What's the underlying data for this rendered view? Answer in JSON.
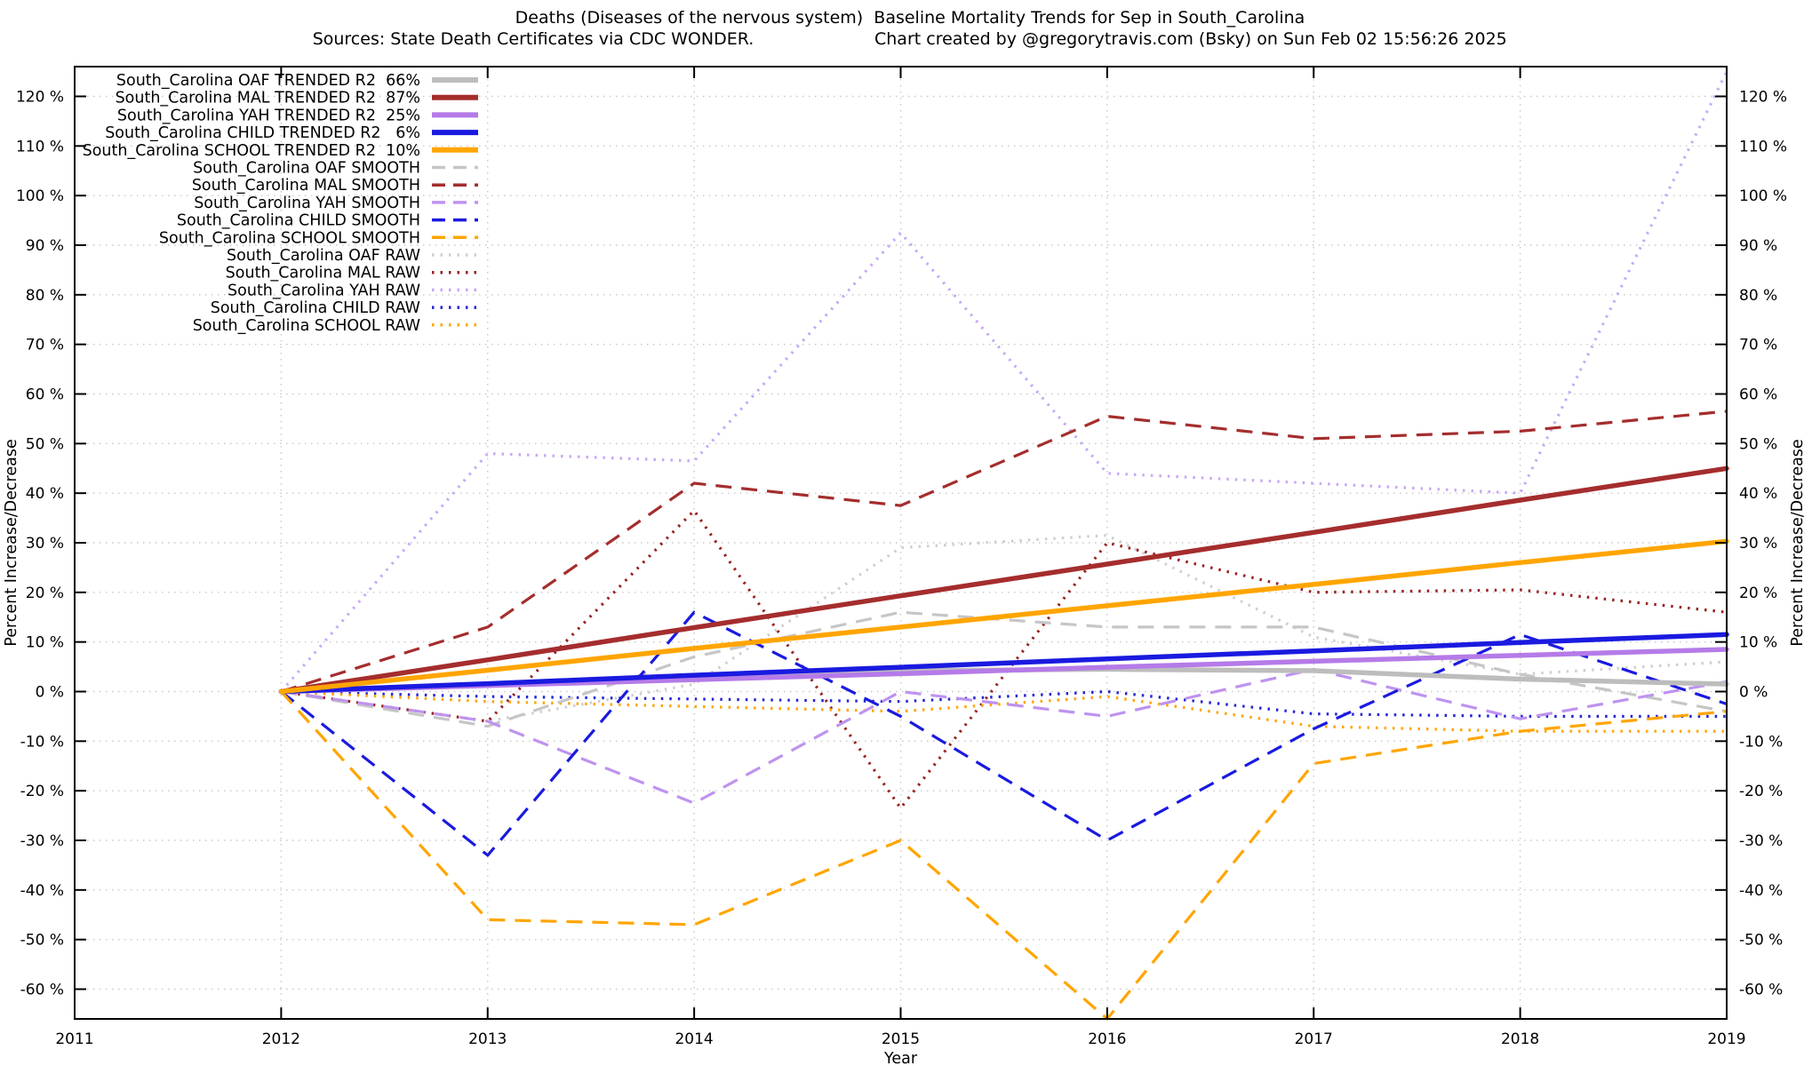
{
  "title": {
    "line1": "Deaths (Diseases of the nervous system)  Baseline Mortality Trends for Sep in South_Carolina",
    "sources": "Sources: State Death Certificates via CDC WONDER.",
    "credit": "Chart created by @gregorytravis.com (Bsky) on Sun Feb 02 15:56:26 2025"
  },
  "chart_data": {
    "type": "line",
    "x": [
      2012,
      2013,
      2014,
      2015,
      2016,
      2017,
      2018,
      2019
    ],
    "xlabel": "Year",
    "ylabel_left": "Percent Increase/Decrease",
    "ylabel_right": "Percent Increase/Decrease",
    "xlim": [
      2011,
      2019
    ],
    "ylim": [
      -66,
      126
    ],
    "xticks": [
      2011,
      2012,
      2013,
      2014,
      2015,
      2016,
      2017,
      2018,
      2019
    ],
    "yticks": [
      -60,
      -50,
      -40,
      -30,
      -20,
      -10,
      0,
      10,
      20,
      30,
      40,
      50,
      60,
      70,
      80,
      90,
      100,
      110,
      120
    ],
    "ytick_suffix": " %",
    "grid": true,
    "grid_color": "#c8c8c8",
    "legend_position": "top-left",
    "series": [
      {
        "name": "OAF TRENDED",
        "legend_label": "South_Carolina OAF TRENDED R2  66%",
        "group": "TRENDED",
        "style": "solid",
        "color": "#bdbdbd",
        "values": [
          0,
          1.5,
          3.2,
          4.2,
          4.5,
          4.2,
          2.5,
          1.5
        ]
      },
      {
        "name": "MAL TRENDED",
        "legend_label": "South_Carolina MAL TRENDED R2  87%",
        "group": "TRENDED",
        "style": "solid",
        "color": "#a52d2d",
        "values": [
          0,
          6.4,
          12.9,
          19.3,
          25.7,
          32.1,
          38.6,
          45
        ]
      },
      {
        "name": "YAH TRENDED",
        "legend_label": "South_Carolina YAH TRENDED R2  25%",
        "group": "TRENDED",
        "style": "solid",
        "color": "#b57be8",
        "values": [
          0,
          1.2,
          2.4,
          3.6,
          4.9,
          6.1,
          7.3,
          8.5
        ]
      },
      {
        "name": "CHILD TRENDED",
        "legend_label": "South_Carolina CHILD TRENDED R2   6%",
        "group": "TRENDED",
        "style": "solid",
        "color": "#1a1ae0",
        "values": [
          0,
          1.6,
          3.3,
          4.9,
          6.6,
          8.2,
          9.9,
          11.5
        ]
      },
      {
        "name": "SCHOOL TRENDED",
        "legend_label": "South_Carolina SCHOOL TRENDED R2  10%",
        "group": "TRENDED",
        "style": "solid",
        "color": "#ffa500",
        "values": [
          0,
          4.3,
          8.7,
          13.0,
          17.3,
          21.6,
          26.0,
          30.3
        ]
      },
      {
        "name": "OAF SMOOTH",
        "legend_label": "South_Carolina OAF SMOOTH",
        "group": "SMOOTH",
        "style": "dashed",
        "color": "#c6c6c6",
        "values": [
          0,
          -7,
          7,
          16,
          13,
          13,
          3.5,
          -4
        ]
      },
      {
        "name": "MAL SMOOTH",
        "legend_label": "South_Carolina MAL SMOOTH",
        "group": "SMOOTH",
        "style": "dashed",
        "color": "#a52d2d",
        "values": [
          0,
          13,
          42,
          37.5,
          55.5,
          51,
          52.5,
          56.5
        ]
      },
      {
        "name": "YAH SMOOTH",
        "legend_label": "South_Carolina YAH SMOOTH",
        "group": "SMOOTH",
        "style": "dashed",
        "color": "#be93ef",
        "values": [
          0,
          -6,
          -22.5,
          0,
          -5,
          4.5,
          -5.5,
          2
        ]
      },
      {
        "name": "CHILD SMOOTH",
        "legend_label": "South_Carolina CHILD SMOOTH",
        "group": "SMOOTH",
        "style": "dashed",
        "color": "#1a1ae0",
        "values": [
          0,
          -33,
          16,
          -5,
          -30,
          -7.5,
          11.5,
          -2.5
        ]
      },
      {
        "name": "SCHOOL SMOOTH",
        "legend_label": "South_Carolina SCHOOL SMOOTH",
        "group": "SMOOTH",
        "style": "dashed",
        "color": "#ffa500",
        "values": [
          0,
          -46,
          -47,
          -30,
          -66,
          -14.5,
          -8,
          -4
        ]
      },
      {
        "name": "OAF RAW",
        "legend_label": "South_Carolina OAF RAW",
        "group": "RAW",
        "style": "dotted",
        "color": "#cfcfcf",
        "values": [
          0,
          -6,
          1.5,
          29,
          31.5,
          11,
          3.5,
          6
        ]
      },
      {
        "name": "MAL RAW",
        "legend_label": "South_Carolina MAL RAW",
        "group": "RAW",
        "style": "dotted",
        "color": "#992222",
        "values": [
          0,
          -6,
          36.5,
          -23.5,
          30,
          20,
          20.5,
          16
        ]
      },
      {
        "name": "YAH RAW",
        "legend_label": "South_Carolina YAH RAW",
        "group": "RAW",
        "style": "dotted",
        "color": "#c7a8f7",
        "values": [
          0,
          48,
          46.5,
          92.5,
          44,
          42,
          40,
          125
        ]
      },
      {
        "name": "CHILD RAW",
        "legend_label": "South_Carolina CHILD RAW",
        "group": "RAW",
        "style": "dotted",
        "color": "#2626d9",
        "values": [
          0,
          -1,
          -1.5,
          -2,
          0,
          -4.5,
          -5,
          -5
        ]
      },
      {
        "name": "SCHOOL RAW",
        "legend_label": "South_Carolina SCHOOL RAW",
        "group": "RAW",
        "style": "dotted",
        "color": "#ffa500",
        "values": [
          0,
          -2,
          -3,
          -4,
          -1,
          -7,
          -8,
          -8
        ]
      }
    ]
  }
}
